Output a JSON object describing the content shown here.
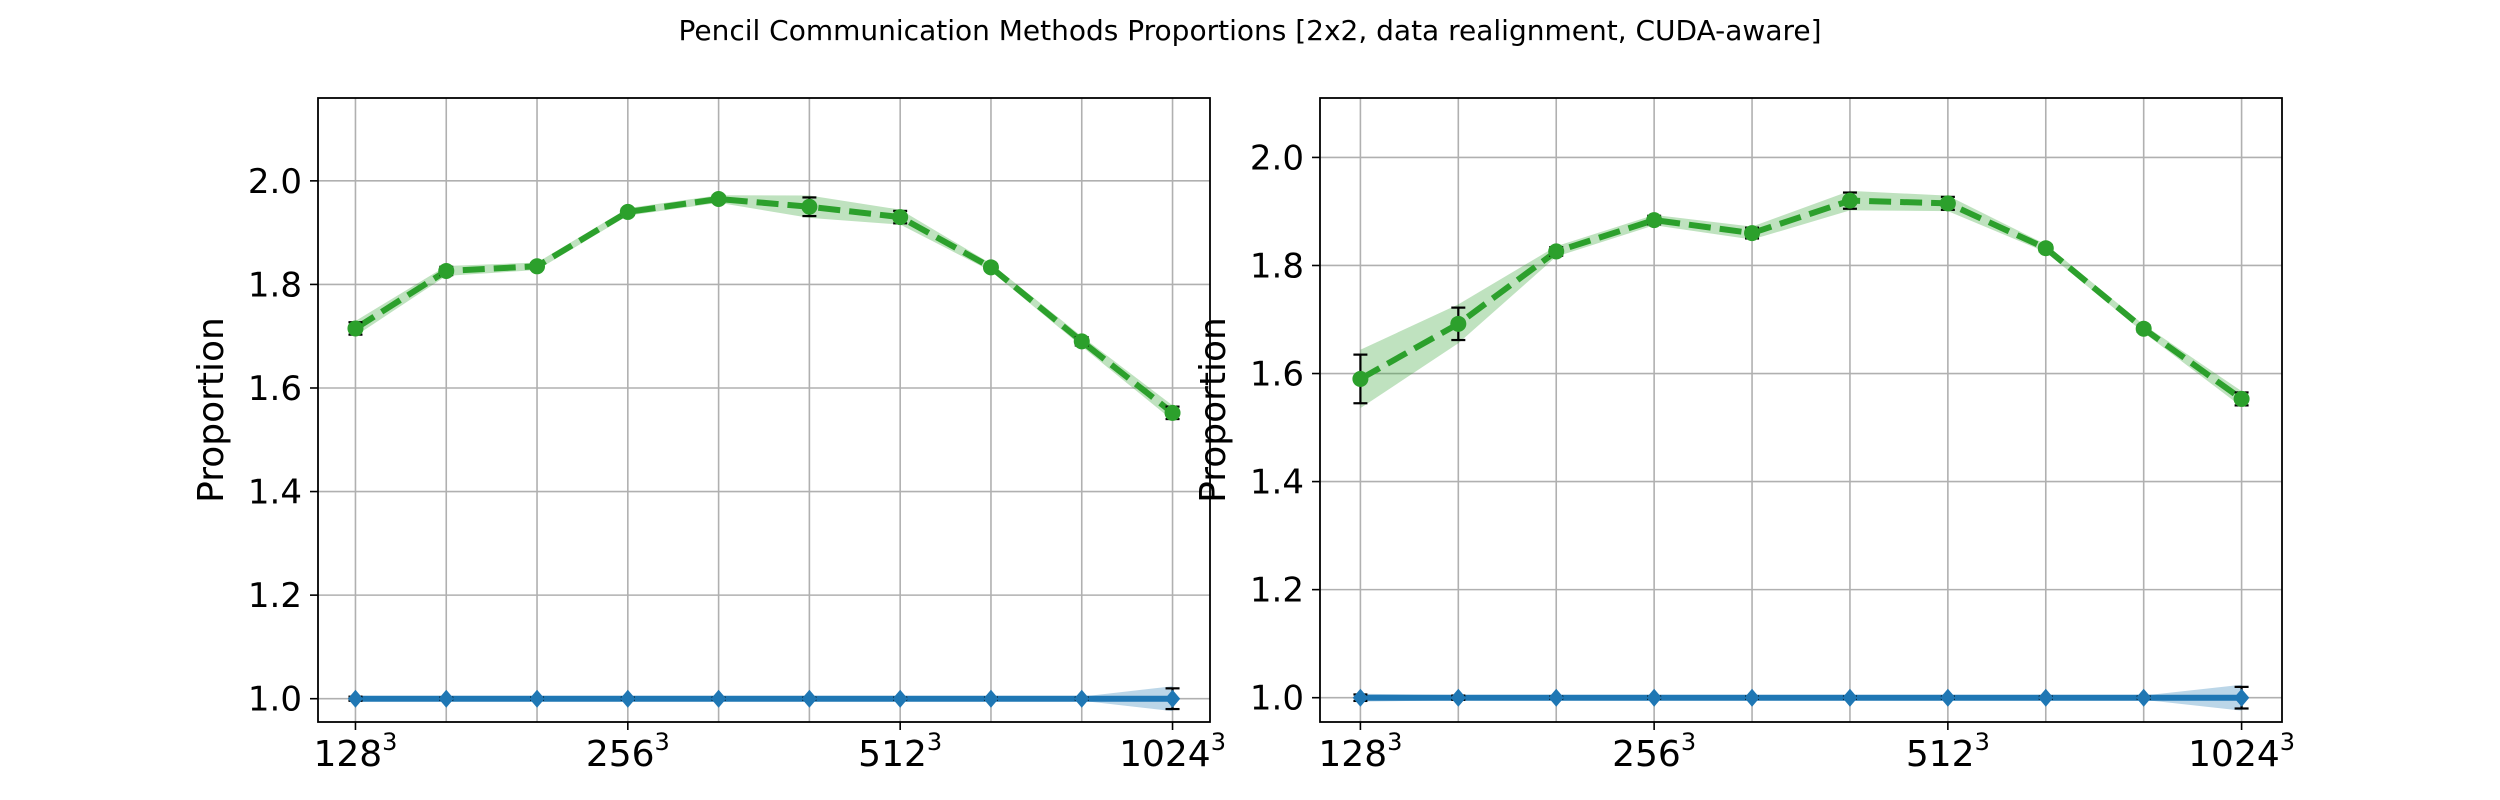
{
  "figure": {
    "title": "Pencil Communication Methods Proportions [2x2, data realignment, CUDA-aware]"
  },
  "colors": {
    "series_green": "#2ca02c",
    "series_blue": "#1f77b4",
    "grid": "#b0b0b0",
    "axes": "#000000"
  },
  "chart_data": [
    {
      "type": "line",
      "panel": "left",
      "ylabel": "Proportion",
      "x_tick_labels": [
        {
          "base": "128",
          "exp": "3"
        },
        {
          "base": "256",
          "exp": "3"
        },
        {
          "base": "512",
          "exp": "3"
        },
        {
          "base": "1024",
          "exp": "3"
        }
      ],
      "y_ticks": [
        "1.0",
        "1.2",
        "1.4",
        "1.6",
        "1.8",
        "2.0"
      ],
      "ylim": [
        0.955,
        2.16
      ],
      "grid": true,
      "points_count": 10,
      "series": [
        {
          "style": "dashed-circle",
          "color": "green",
          "values": [
            1.715,
            1.826,
            1.835,
            1.94,
            1.965,
            1.95,
            1.93,
            1.833,
            1.69,
            1.552
          ],
          "errors": [
            0.012,
            0.008,
            0.006,
            0.006,
            0.006,
            0.018,
            0.012,
            0.006,
            0.008,
            0.012
          ]
        },
        {
          "style": "solid-diamond",
          "color": "blue",
          "values": [
            1.0,
            1.0,
            1.0,
            1.0,
            1.0,
            1.0,
            1.0,
            1.0,
            1.0,
            1.0
          ],
          "errors": [
            0.004,
            0.002,
            0.002,
            0.002,
            0.002,
            0.002,
            0.002,
            0.002,
            0.002,
            0.02
          ]
        }
      ]
    },
    {
      "type": "line",
      "panel": "right",
      "ylabel": "Proportion",
      "x_tick_labels": [
        {
          "base": "128",
          "exp": "3"
        },
        {
          "base": "256",
          "exp": "3"
        },
        {
          "base": "512",
          "exp": "3"
        },
        {
          "base": "1024",
          "exp": "3"
        }
      ],
      "y_ticks": [
        "1.0",
        "1.2",
        "1.4",
        "1.6",
        "1.8",
        "2.0"
      ],
      "ylim": [
        0.955,
        2.11
      ],
      "grid": true,
      "points_count": 10,
      "series": [
        {
          "style": "dashed-circle",
          "color": "green",
          "values": [
            1.59,
            1.692,
            1.826,
            1.884,
            1.86,
            1.92,
            1.915,
            1.832,
            1.683,
            1.553
          ],
          "errors": [
            0.045,
            0.03,
            0.008,
            0.008,
            0.01,
            0.015,
            0.012,
            0.006,
            0.006,
            0.012
          ]
        },
        {
          "style": "solid-diamond",
          "color": "blue",
          "values": [
            1.0,
            1.0,
            1.0,
            1.0,
            1.0,
            1.0,
            1.0,
            1.0,
            1.0,
            1.0
          ],
          "errors": [
            0.006,
            0.004,
            0.002,
            0.002,
            0.002,
            0.002,
            0.002,
            0.002,
            0.002,
            0.02
          ]
        }
      ]
    }
  ]
}
